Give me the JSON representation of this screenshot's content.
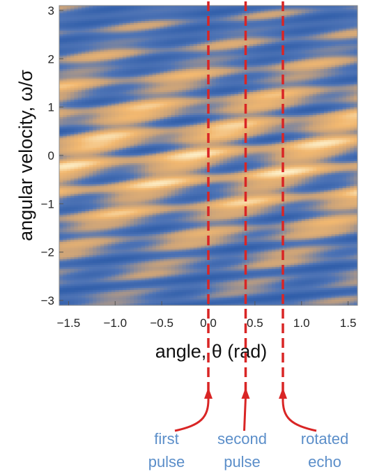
{
  "chart_data": {
    "type": "heatmap",
    "xlabel": "angle, θ (rad)",
    "ylabel": "angular velocity, ω/σ",
    "xlim": [
      -1.6,
      1.6
    ],
    "ylim": [
      -3.1,
      3.1
    ],
    "x_ticks": [
      -1.5,
      -1.0,
      -0.5,
      0.0,
      0.5,
      1.0,
      1.5
    ],
    "x_tick_labels": [
      "−1.5",
      "−1.0",
      "−0.5",
      "0.0",
      "0.5",
      "1.0",
      "1.5"
    ],
    "y_ticks": [
      -3,
      -2,
      -1,
      0,
      1,
      2,
      3
    ],
    "y_tick_labels": [
      "−3",
      "−2",
      "−1",
      "0",
      "1",
      "2",
      "3"
    ],
    "colormap": [
      "#2a5aa8",
      "#4f74b5",
      "#c9a27a",
      "#f2b870",
      "#fdeec6"
    ],
    "grid": false,
    "markers": [
      {
        "x": 0.0,
        "label_line1": "first",
        "label_line2": "pulse"
      },
      {
        "x": 0.4,
        "label_line1": "second",
        "label_line2": "pulse"
      },
      {
        "x": 0.8,
        "label_line1": "rotated",
        "label_line2": "echo"
      }
    ],
    "marker_color": "#d92525",
    "annotation_color": "#5b8ec9"
  }
}
